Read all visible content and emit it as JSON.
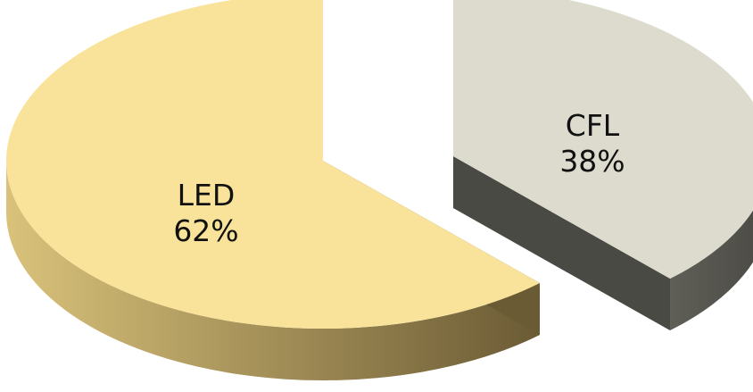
{
  "chart_data": {
    "type": "pie",
    "style": "3d-exploded",
    "categories": [
      "LED",
      "CFL"
    ],
    "values": [
      62,
      38
    ],
    "value_labels": [
      "62%",
      "38%"
    ],
    "colors": {
      "LED": "#f9e39a",
      "CFL": "#dcdbce"
    },
    "side_colors": {
      "LED": [
        "#d9c27a",
        "#6b5b35"
      ],
      "CFL": [
        "#5f5e57",
        "#4a4a44"
      ]
    },
    "title": "",
    "legend": "none"
  }
}
